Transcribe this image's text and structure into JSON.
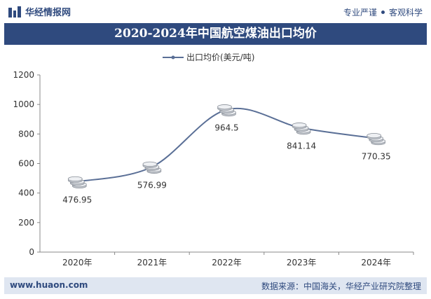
{
  "header": {
    "brand": "华经情报网",
    "slogan_left": "专业严谨",
    "slogan_right": "客观科学"
  },
  "title": "2020-2024年中国航空煤油出口均价",
  "footer": {
    "url": "www.huaon.com",
    "source": "数据来源：中国海关，华经产业研究院整理"
  },
  "colors": {
    "brand": "#2f4a7e",
    "line": "#5a6f96",
    "footer_bg": "#dfe6f1"
  },
  "chart_data": {
    "type": "line",
    "categories": [
      "2020年",
      "2021年",
      "2022年",
      "2023年",
      "2024年"
    ],
    "series": [
      {
        "name": "出口均价(美元/吨)",
        "values": [
          476.95,
          576.99,
          964.5,
          841.14,
          770.35
        ]
      }
    ],
    "data_labels": [
      "476.95",
      "576.99",
      "964.5",
      "841.14",
      "770.35"
    ],
    "y_ticks": [
      0,
      200,
      400,
      600,
      800,
      1000,
      1200
    ],
    "ylim": [
      0,
      1200
    ],
    "smooth": true,
    "legend_position": "top-center",
    "grid": false
  }
}
